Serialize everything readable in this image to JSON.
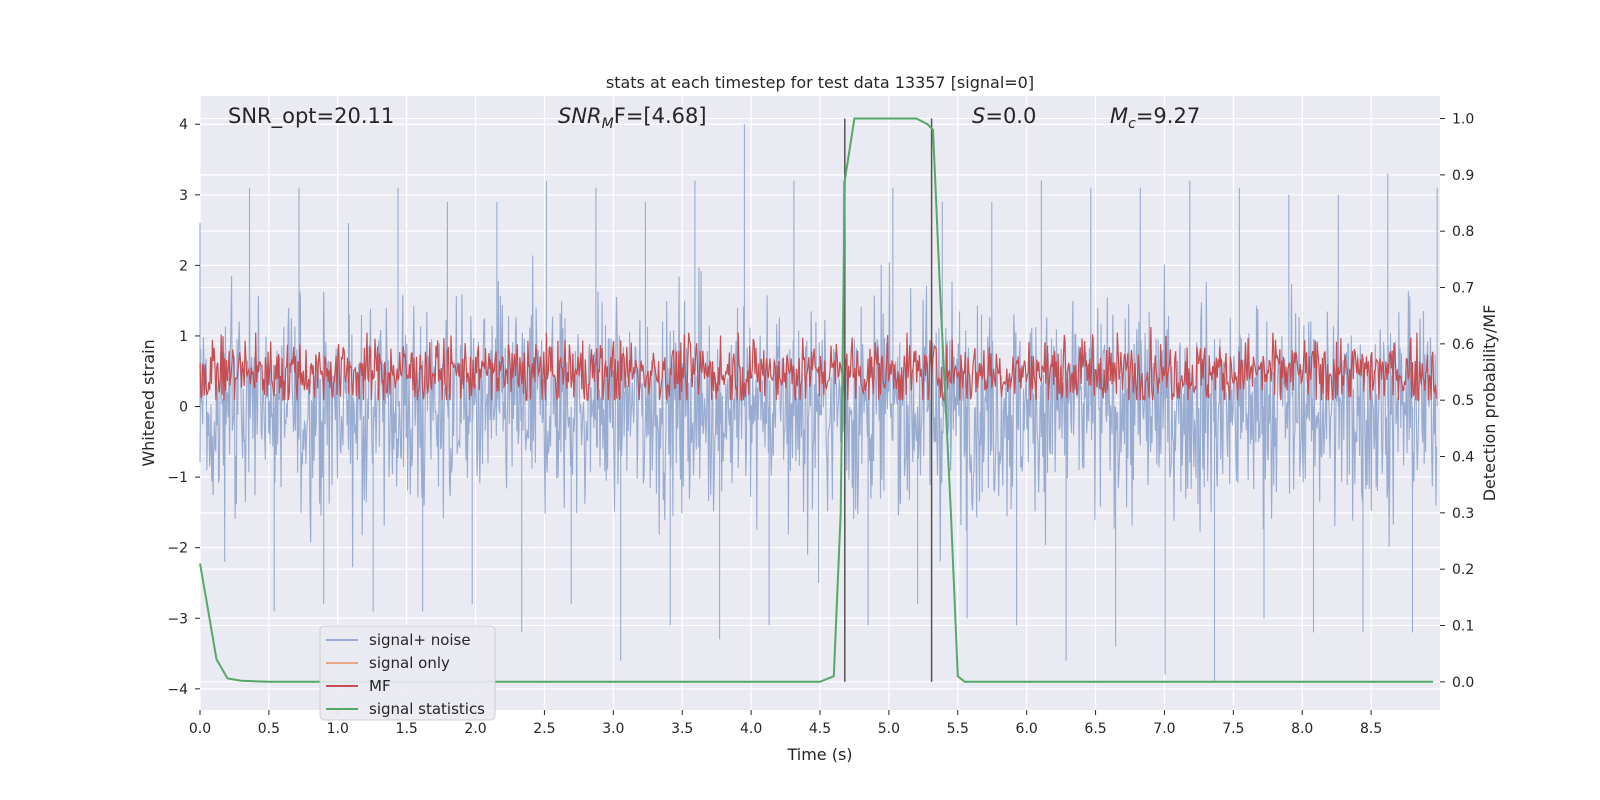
{
  "chart_data": {
    "type": "line",
    "title": "stats at each timestep for test data 13357 [signal=0]",
    "xlabel": "Time (s)",
    "ylabel": "Whitened strain",
    "y2label": "Detection probability/MF",
    "xlim": [
      0.0,
      9.0
    ],
    "ylim": [
      -4.3,
      4.4
    ],
    "y2lim": [
      -0.05,
      1.04
    ],
    "grid": true,
    "legend_position": "lower-left",
    "x_ticks": [
      "0.0",
      "0.5",
      "1.0",
      "1.5",
      "2.0",
      "2.5",
      "3.0",
      "3.5",
      "4.0",
      "4.5",
      "5.0",
      "5.5",
      "6.0",
      "6.5",
      "7.0",
      "7.5",
      "8.0",
      "8.5"
    ],
    "y_ticks": [
      "4",
      "3",
      "2",
      "1",
      "0",
      "−1",
      "−2",
      "−3",
      "−4"
    ],
    "y2_ticks": [
      "1.0",
      "0.9",
      "0.8",
      "0.7",
      "0.6",
      "0.5",
      "0.4",
      "0.3",
      "0.2",
      "0.1",
      "0.0"
    ],
    "annotations": {
      "snr_opt": "SNR_opt=20.11",
      "snr_mf_main": "SNR",
      "snr_mf_sub": "M",
      "snr_mf_rest": "F=[4.68]",
      "s_main": "S",
      "s_rest": "=0.0",
      "mc_main": "M",
      "mc_sub": "c",
      "mc_rest": "=9.27"
    },
    "series": [
      {
        "name": "signal+ noise",
        "color": "#98abd0",
        "axis": "left",
        "description": "whitened strain noise, approx range -4 to 4",
        "envelope_upper": [
          2.6,
          3.1,
          3.1,
          2.6,
          3.1,
          2.9,
          2.9,
          3.2,
          3.1,
          2.9,
          3.2,
          4.0,
          3.2,
          3.2,
          3.1,
          2.9,
          2.9,
          3.2,
          3.1,
          3.1,
          3.2,
          3.1,
          3.0,
          3.0,
          3.3,
          3.1
        ],
        "envelope_lower": [
          -2.2,
          -2.9,
          -2.8,
          -2.9,
          -2.9,
          -2.8,
          -3.2,
          -2.8,
          -3.6,
          -3.1,
          -3.3,
          -3.1,
          -2.5,
          -3.1,
          -2.8,
          -3.0,
          -3.1,
          -3.6,
          -3.4,
          -3.8,
          -3.9,
          -3.0,
          -3.2,
          -3.2,
          -3.2,
          -2.7
        ]
      },
      {
        "name": "signal only",
        "color": "#e8a88a",
        "axis": "left",
        "x": [],
        "y": []
      },
      {
        "name": "MF",
        "color": "#c44e52",
        "axis": "right",
        "description": "matched filter output, approx 0.50-0.60",
        "mean": 0.55,
        "min": 0.5,
        "max": 0.62,
        "spike_x": 6.9,
        "spike_y": 0.63
      },
      {
        "name": "signal statistics",
        "color": "#55a868",
        "axis": "right",
        "x": [
          0.0,
          0.05,
          0.12,
          0.2,
          0.3,
          0.5,
          1.0,
          2.0,
          3.0,
          4.0,
          4.5,
          4.6,
          4.65,
          4.68,
          4.75,
          4.85,
          5.0,
          5.2,
          5.28,
          5.32,
          5.37,
          5.45,
          5.5,
          5.55,
          6.0,
          7.0,
          8.0,
          8.95
        ],
        "y": [
          0.21,
          0.14,
          0.04,
          0.006,
          0.002,
          0.0,
          0.0,
          0.0,
          0.0,
          0.0,
          0.0,
          0.01,
          0.3,
          0.89,
          1.0,
          1.0,
          1.0,
          1.0,
          0.99,
          0.98,
          0.7,
          0.3,
          0.01,
          0.0,
          0.0,
          0.0,
          0.0,
          0.0
        ]
      }
    ],
    "vertical_lines": [
      4.68,
      5.31
    ]
  }
}
